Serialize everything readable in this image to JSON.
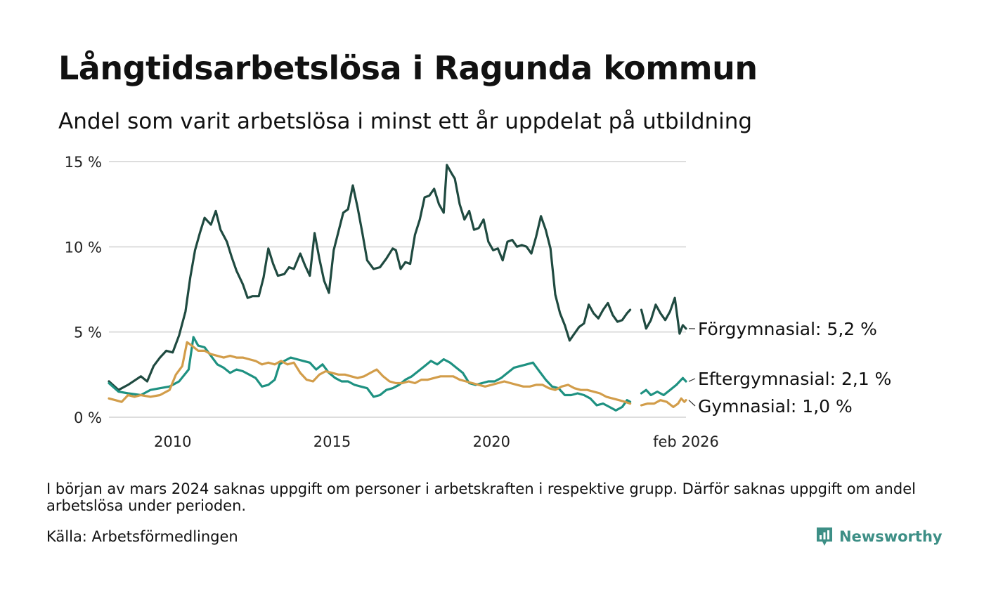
{
  "header": {
    "title": "Långtidsarbetslösa i Ragunda kommun",
    "subtitle": "Andel som varit arbetslösa i minst ett år uppdelat på utbildning"
  },
  "footer": {
    "note": "I början av mars 2024 saknas uppgift om personer i arbetskraften i respektive grupp. Därför saknas uppgift om andel arbetslösa under perioden.",
    "source": "Källa: Arbetsförmedlingen",
    "brand": "Newsworthy"
  },
  "chart_data": {
    "type": "line",
    "title": "Långtidsarbetslösa i Ragunda kommun",
    "ylim": [
      0,
      15
    ],
    "yticks": [
      0,
      5,
      10,
      15
    ],
    "ytick_labels": [
      "0 %",
      "5 %",
      "10 %",
      "15 %"
    ],
    "xlim": [
      2008.0,
      2026.1
    ],
    "xticks": [
      2010,
      2015,
      2020,
      2026.1
    ],
    "xtick_labels": [
      "2010",
      "2015",
      "2020",
      "feb 2026"
    ],
    "grid": true,
    "series": [
      {
        "name": "Förgymnasial",
        "end_label": "Förgymnasial: 5,2 %",
        "color": "#1f4a40",
        "points": [
          [
            2008.0,
            2.1
          ],
          [
            2008.3,
            1.6
          ],
          [
            2008.6,
            1.9
          ],
          [
            2009.0,
            2.4
          ],
          [
            2009.2,
            2.1
          ],
          [
            2009.4,
            3.0
          ],
          [
            2009.6,
            3.5
          ],
          [
            2009.8,
            3.9
          ],
          [
            2010.0,
            3.8
          ],
          [
            2010.2,
            4.8
          ],
          [
            2010.4,
            6.2
          ],
          [
            2010.55,
            8.2
          ],
          [
            2010.7,
            9.8
          ],
          [
            2010.85,
            10.8
          ],
          [
            2011.0,
            11.7
          ],
          [
            2011.2,
            11.3
          ],
          [
            2011.35,
            12.1
          ],
          [
            2011.5,
            11.0
          ],
          [
            2011.7,
            10.3
          ],
          [
            2011.85,
            9.4
          ],
          [
            2012.0,
            8.6
          ],
          [
            2012.2,
            7.8
          ],
          [
            2012.35,
            7.0
          ],
          [
            2012.5,
            7.1
          ],
          [
            2012.7,
            7.1
          ],
          [
            2012.85,
            8.2
          ],
          [
            2013.0,
            9.9
          ],
          [
            2013.15,
            9.0
          ],
          [
            2013.3,
            8.3
          ],
          [
            2013.5,
            8.4
          ],
          [
            2013.65,
            8.8
          ],
          [
            2013.8,
            8.7
          ],
          [
            2014.0,
            9.6
          ],
          [
            2014.15,
            8.9
          ],
          [
            2014.3,
            8.3
          ],
          [
            2014.45,
            10.8
          ],
          [
            2014.6,
            9.3
          ],
          [
            2014.75,
            8.0
          ],
          [
            2014.9,
            7.3
          ],
          [
            2015.05,
            9.8
          ],
          [
            2015.2,
            10.9
          ],
          [
            2015.35,
            12.0
          ],
          [
            2015.5,
            12.2
          ],
          [
            2015.65,
            13.6
          ],
          [
            2015.8,
            12.3
          ],
          [
            2015.95,
            10.8
          ],
          [
            2016.1,
            9.2
          ],
          [
            2016.3,
            8.7
          ],
          [
            2016.5,
            8.8
          ],
          [
            2016.7,
            9.3
          ],
          [
            2016.9,
            9.9
          ],
          [
            2017.0,
            9.8
          ],
          [
            2017.15,
            8.7
          ],
          [
            2017.3,
            9.1
          ],
          [
            2017.45,
            9.0
          ],
          [
            2017.6,
            10.7
          ],
          [
            2017.75,
            11.6
          ],
          [
            2017.9,
            12.9
          ],
          [
            2018.05,
            13.0
          ],
          [
            2018.2,
            13.4
          ],
          [
            2018.35,
            12.5
          ],
          [
            2018.5,
            12.0
          ],
          [
            2018.6,
            14.8
          ],
          [
            2018.75,
            14.3
          ],
          [
            2018.85,
            14.0
          ],
          [
            2019.0,
            12.5
          ],
          [
            2019.15,
            11.6
          ],
          [
            2019.3,
            12.1
          ],
          [
            2019.45,
            11.0
          ],
          [
            2019.6,
            11.1
          ],
          [
            2019.75,
            11.6
          ],
          [
            2019.9,
            10.3
          ],
          [
            2020.05,
            9.8
          ],
          [
            2020.2,
            9.9
          ],
          [
            2020.35,
            9.2
          ],
          [
            2020.5,
            10.3
          ],
          [
            2020.65,
            10.4
          ],
          [
            2020.8,
            10.0
          ],
          [
            2020.95,
            10.1
          ],
          [
            2021.1,
            10.0
          ],
          [
            2021.25,
            9.6
          ],
          [
            2021.4,
            10.6
          ],
          [
            2021.55,
            11.8
          ],
          [
            2021.7,
            11.0
          ],
          [
            2021.85,
            9.9
          ],
          [
            2022.0,
            7.2
          ],
          [
            2022.15,
            6.1
          ],
          [
            2022.3,
            5.4
          ],
          [
            2022.45,
            4.5
          ],
          [
            2022.6,
            4.9
          ],
          [
            2022.75,
            5.3
          ],
          [
            2022.9,
            5.5
          ],
          [
            2023.05,
            6.6
          ],
          [
            2023.2,
            6.1
          ],
          [
            2023.35,
            5.8
          ],
          [
            2023.5,
            6.3
          ],
          [
            2023.65,
            6.7
          ],
          [
            2023.8,
            6.0
          ],
          [
            2023.95,
            5.6
          ],
          [
            2024.1,
            5.7
          ],
          [
            2024.25,
            6.1
          ],
          [
            2024.35,
            6.3
          ],
          null,
          [
            2024.7,
            6.3
          ],
          [
            2024.85,
            5.2
          ],
          [
            2025.0,
            5.7
          ],
          [
            2025.15,
            6.6
          ],
          [
            2025.3,
            6.1
          ],
          [
            2025.45,
            5.7
          ],
          [
            2025.6,
            6.2
          ],
          [
            2025.75,
            7.0
          ],
          [
            2025.9,
            4.9
          ],
          [
            2026.0,
            5.4
          ],
          [
            2026.1,
            5.2
          ]
        ]
      },
      {
        "name": "Eftergymnasial",
        "end_label": "Eftergymnasial: 2,1 %",
        "color": "#1e9181",
        "points": [
          [
            2008.0,
            2.0
          ],
          [
            2008.3,
            1.5
          ],
          [
            2008.6,
            1.4
          ],
          [
            2009.0,
            1.3
          ],
          [
            2009.3,
            1.6
          ],
          [
            2009.6,
            1.7
          ],
          [
            2009.9,
            1.8
          ],
          [
            2010.2,
            2.1
          ],
          [
            2010.5,
            2.8
          ],
          [
            2010.65,
            4.7
          ],
          [
            2010.8,
            4.2
          ],
          [
            2011.0,
            4.1
          ],
          [
            2011.2,
            3.6
          ],
          [
            2011.4,
            3.1
          ],
          [
            2011.6,
            2.9
          ],
          [
            2011.8,
            2.6
          ],
          [
            2012.0,
            2.8
          ],
          [
            2012.2,
            2.7
          ],
          [
            2012.4,
            2.5
          ],
          [
            2012.6,
            2.3
          ],
          [
            2012.8,
            1.8
          ],
          [
            2013.0,
            1.9
          ],
          [
            2013.2,
            2.2
          ],
          [
            2013.35,
            3.1
          ],
          [
            2013.5,
            3.3
          ],
          [
            2013.7,
            3.5
          ],
          [
            2013.9,
            3.4
          ],
          [
            2014.1,
            3.3
          ],
          [
            2014.3,
            3.2
          ],
          [
            2014.5,
            2.8
          ],
          [
            2014.7,
            3.1
          ],
          [
            2014.9,
            2.6
          ],
          [
            2015.1,
            2.3
          ],
          [
            2015.3,
            2.1
          ],
          [
            2015.5,
            2.1
          ],
          [
            2015.7,
            1.9
          ],
          [
            2015.9,
            1.8
          ],
          [
            2016.1,
            1.7
          ],
          [
            2016.3,
            1.2
          ],
          [
            2016.5,
            1.3
          ],
          [
            2016.7,
            1.6
          ],
          [
            2016.9,
            1.7
          ],
          [
            2017.1,
            1.9
          ],
          [
            2017.3,
            2.2
          ],
          [
            2017.5,
            2.4
          ],
          [
            2017.7,
            2.7
          ],
          [
            2017.9,
            3.0
          ],
          [
            2018.1,
            3.3
          ],
          [
            2018.3,
            3.1
          ],
          [
            2018.5,
            3.4
          ],
          [
            2018.7,
            3.2
          ],
          [
            2018.9,
            2.9
          ],
          [
            2019.1,
            2.6
          ],
          [
            2019.3,
            2.0
          ],
          [
            2019.5,
            1.9
          ],
          [
            2019.7,
            2.0
          ],
          [
            2019.9,
            2.1
          ],
          [
            2020.1,
            2.1
          ],
          [
            2020.3,
            2.3
          ],
          [
            2020.5,
            2.6
          ],
          [
            2020.7,
            2.9
          ],
          [
            2020.9,
            3.0
          ],
          [
            2021.1,
            3.1
          ],
          [
            2021.3,
            3.2
          ],
          [
            2021.5,
            2.7
          ],
          [
            2021.7,
            2.2
          ],
          [
            2021.9,
            1.8
          ],
          [
            2022.1,
            1.7
          ],
          [
            2022.3,
            1.3
          ],
          [
            2022.5,
            1.3
          ],
          [
            2022.7,
            1.4
          ],
          [
            2022.9,
            1.3
          ],
          [
            2023.1,
            1.1
          ],
          [
            2023.3,
            0.7
          ],
          [
            2023.5,
            0.8
          ],
          [
            2023.7,
            0.6
          ],
          [
            2023.9,
            0.4
          ],
          [
            2024.1,
            0.6
          ],
          [
            2024.25,
            1.0
          ],
          [
            2024.35,
            0.9
          ],
          null,
          [
            2024.7,
            1.4
          ],
          [
            2024.85,
            1.6
          ],
          [
            2025.0,
            1.3
          ],
          [
            2025.2,
            1.5
          ],
          [
            2025.4,
            1.3
          ],
          [
            2025.6,
            1.6
          ],
          [
            2025.8,
            1.9
          ],
          [
            2026.0,
            2.3
          ],
          [
            2026.1,
            2.1
          ]
        ]
      },
      {
        "name": "Gymnasial",
        "end_label": "Gymnasial: 1,0 %",
        "color": "#d29d4a",
        "points": [
          [
            2008.0,
            1.1
          ],
          [
            2008.2,
            1.0
          ],
          [
            2008.4,
            0.9
          ],
          [
            2008.6,
            1.3
          ],
          [
            2008.8,
            1.2
          ],
          [
            2009.0,
            1.3
          ],
          [
            2009.3,
            1.2
          ],
          [
            2009.6,
            1.3
          ],
          [
            2009.9,
            1.6
          ],
          [
            2010.1,
            2.5
          ],
          [
            2010.3,
            3.0
          ],
          [
            2010.45,
            4.4
          ],
          [
            2010.6,
            4.2
          ],
          [
            2010.8,
            3.9
          ],
          [
            2011.0,
            3.9
          ],
          [
            2011.2,
            3.7
          ],
          [
            2011.4,
            3.6
          ],
          [
            2011.6,
            3.5
          ],
          [
            2011.8,
            3.6
          ],
          [
            2012.0,
            3.5
          ],
          [
            2012.2,
            3.5
          ],
          [
            2012.4,
            3.4
          ],
          [
            2012.6,
            3.3
          ],
          [
            2012.8,
            3.1
          ],
          [
            2013.0,
            3.2
          ],
          [
            2013.2,
            3.1
          ],
          [
            2013.4,
            3.3
          ],
          [
            2013.6,
            3.1
          ],
          [
            2013.8,
            3.2
          ],
          [
            2014.0,
            2.6
          ],
          [
            2014.2,
            2.2
          ],
          [
            2014.4,
            2.1
          ],
          [
            2014.6,
            2.5
          ],
          [
            2014.8,
            2.7
          ],
          [
            2015.0,
            2.6
          ],
          [
            2015.2,
            2.5
          ],
          [
            2015.4,
            2.5
          ],
          [
            2015.6,
            2.4
          ],
          [
            2015.8,
            2.3
          ],
          [
            2016.0,
            2.4
          ],
          [
            2016.2,
            2.6
          ],
          [
            2016.4,
            2.8
          ],
          [
            2016.6,
            2.4
          ],
          [
            2016.8,
            2.1
          ],
          [
            2017.0,
            2.0
          ],
          [
            2017.2,
            2.0
          ],
          [
            2017.4,
            2.1
          ],
          [
            2017.6,
            2.0
          ],
          [
            2017.8,
            2.2
          ],
          [
            2018.0,
            2.2
          ],
          [
            2018.2,
            2.3
          ],
          [
            2018.4,
            2.4
          ],
          [
            2018.6,
            2.4
          ],
          [
            2018.8,
            2.4
          ],
          [
            2019.0,
            2.2
          ],
          [
            2019.2,
            2.1
          ],
          [
            2019.4,
            2.0
          ],
          [
            2019.6,
            1.9
          ],
          [
            2019.8,
            1.8
          ],
          [
            2020.0,
            1.9
          ],
          [
            2020.2,
            2.0
          ],
          [
            2020.4,
            2.1
          ],
          [
            2020.6,
            2.0
          ],
          [
            2020.8,
            1.9
          ],
          [
            2021.0,
            1.8
          ],
          [
            2021.2,
            1.8
          ],
          [
            2021.4,
            1.9
          ],
          [
            2021.6,
            1.9
          ],
          [
            2021.8,
            1.7
          ],
          [
            2022.0,
            1.6
          ],
          [
            2022.2,
            1.8
          ],
          [
            2022.4,
            1.9
          ],
          [
            2022.6,
            1.7
          ],
          [
            2022.8,
            1.6
          ],
          [
            2023.0,
            1.6
          ],
          [
            2023.2,
            1.5
          ],
          [
            2023.4,
            1.4
          ],
          [
            2023.6,
            1.2
          ],
          [
            2023.8,
            1.1
          ],
          [
            2024.0,
            1.0
          ],
          [
            2024.2,
            0.9
          ],
          [
            2024.35,
            0.8
          ],
          null,
          [
            2024.7,
            0.7
          ],
          [
            2024.9,
            0.8
          ],
          [
            2025.1,
            0.8
          ],
          [
            2025.3,
            1.0
          ],
          [
            2025.5,
            0.9
          ],
          [
            2025.7,
            0.6
          ],
          [
            2025.85,
            0.8
          ],
          [
            2025.95,
            1.1
          ],
          [
            2026.05,
            0.9
          ],
          [
            2026.1,
            1.0
          ]
        ]
      }
    ]
  }
}
